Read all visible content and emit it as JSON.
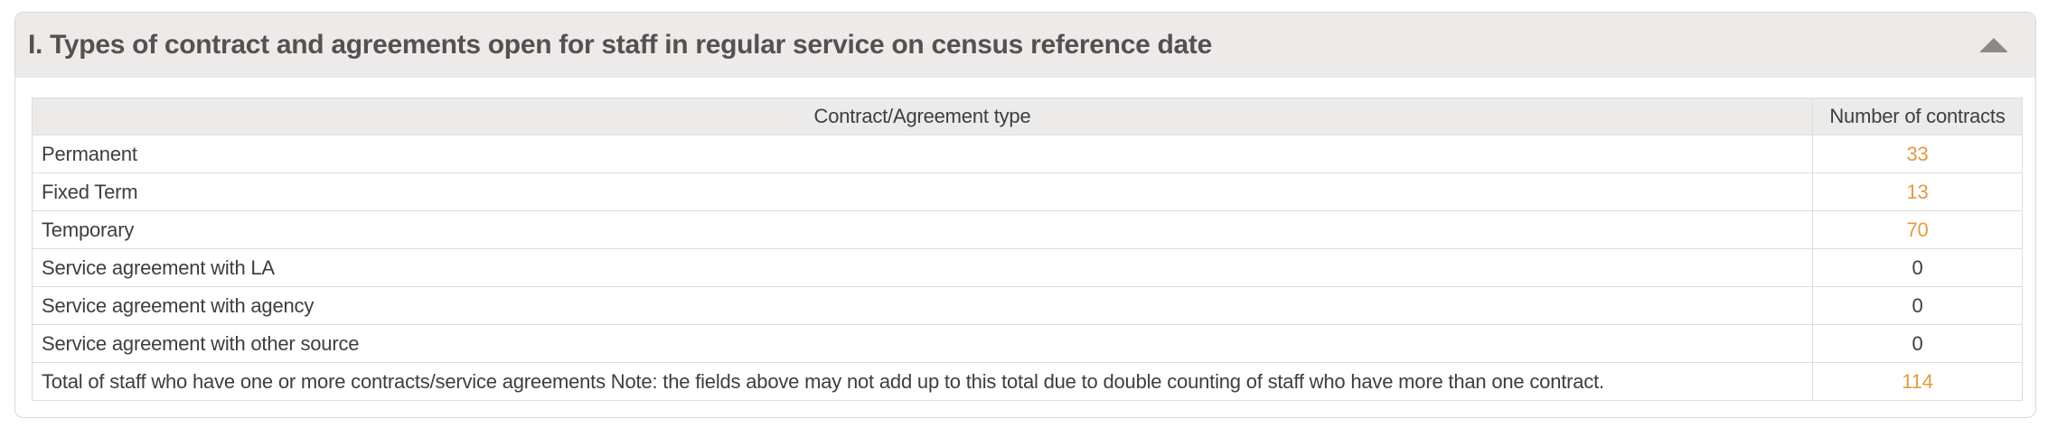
{
  "panel": {
    "title": "I. Types of contract and agreements open for staff in regular service on census reference date",
    "collapse_icon": "triangle-up-icon",
    "expanded": true
  },
  "table": {
    "columns": [
      "Contract/Agreement type",
      "Number of contracts"
    ],
    "rows": [
      {
        "label": "Permanent",
        "value": "33",
        "highlight": true
      },
      {
        "label": "Fixed Term",
        "value": "13",
        "highlight": true
      },
      {
        "label": "Temporary",
        "value": "70",
        "highlight": true
      },
      {
        "label": "Service agreement with LA",
        "value": "0",
        "highlight": false
      },
      {
        "label": "Service agreement with agency",
        "value": "0",
        "highlight": false
      },
      {
        "label": "Service agreement with other source",
        "value": "0",
        "highlight": false
      },
      {
        "label": "Total of staff who have one or more contracts/service agreements Note: the fields above may not add up to this total due to double counting of staff who have more than one contract.",
        "value": "114",
        "highlight": true
      }
    ]
  },
  "colors": {
    "accent": "#e9993f",
    "panel_header_bg": "#ecebe9",
    "table_header_bg": "#ecebe9",
    "border": "#dddddd",
    "panel_border": "#d8d8d8",
    "title_text": "#565051",
    "body_text": "#3e3e3e",
    "collapse_icon_color": "#8d8987"
  }
}
